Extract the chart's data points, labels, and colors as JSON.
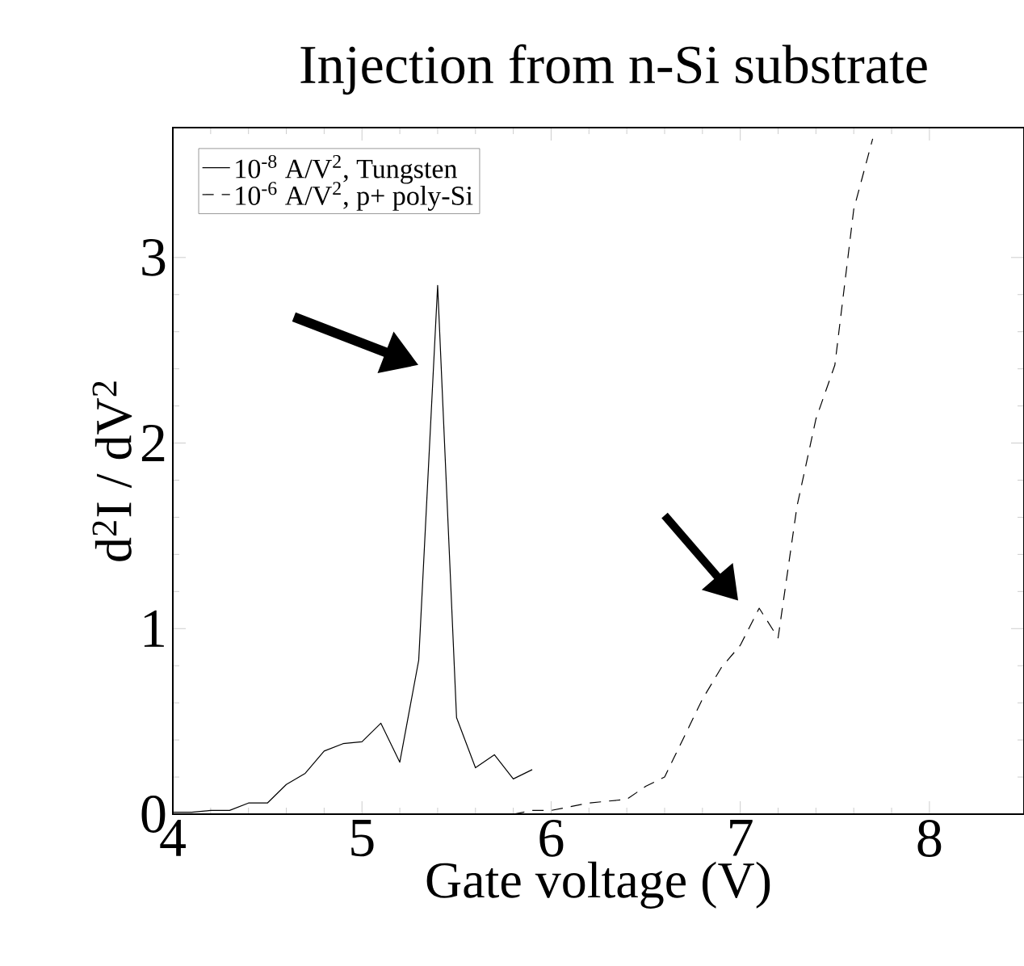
{
  "chart_data": {
    "type": "line",
    "title": "Injection from n-Si substrate",
    "xlabel": "Gate voltage  (V)",
    "ylabel": "d$^{2}$I / dV$^{2}$",
    "xlim": [
      4,
      8.5
    ],
    "ylim": [
      0,
      3.7
    ],
    "xticks": [
      4,
      5,
      6,
      7,
      8
    ],
    "yticks": [
      0,
      1,
      2,
      3
    ],
    "grid": false,
    "legend": "top left",
    "marker": "none",
    "series": [
      {
        "name": "10$^{-8}$ A/V$^{2}$, Tungsten",
        "color": "#000000",
        "line_style": "solid",
        "x": [
          4.0,
          4.1,
          4.2,
          4.3,
          4.4,
          4.5,
          4.6,
          4.7,
          4.8,
          4.9,
          5.0,
          5.1,
          5.2,
          5.3,
          5.4,
          5.5,
          5.6,
          5.7,
          5.8,
          5.9
        ],
        "values": [
          0.01,
          0.01,
          0.02,
          0.02,
          0.06,
          0.06,
          0.16,
          0.22,
          0.34,
          0.38,
          0.39,
          0.49,
          0.28,
          0.83,
          2.85,
          0.52,
          0.25,
          0.32,
          0.19,
          0.24
        ]
      },
      {
        "name": "10$^{-6}$ A/V$^{2}$, p+ poly-Si",
        "color": "#000000",
        "line_style": "dashed",
        "x": [
          5.8,
          5.9,
          6.0,
          6.1,
          6.2,
          6.3,
          6.4,
          6.5,
          6.6,
          6.7,
          6.8,
          6.9,
          7.0,
          7.1,
          7.2,
          7.3,
          7.4,
          7.5,
          7.6,
          7.7
        ],
        "values": [
          0.0,
          0.02,
          0.02,
          0.04,
          0.06,
          0.07,
          0.08,
          0.15,
          0.2,
          0.41,
          0.62,
          0.79,
          0.91,
          1.11,
          0.95,
          1.66,
          2.13,
          2.42,
          3.26,
          3.64
        ]
      }
    ]
  }
}
